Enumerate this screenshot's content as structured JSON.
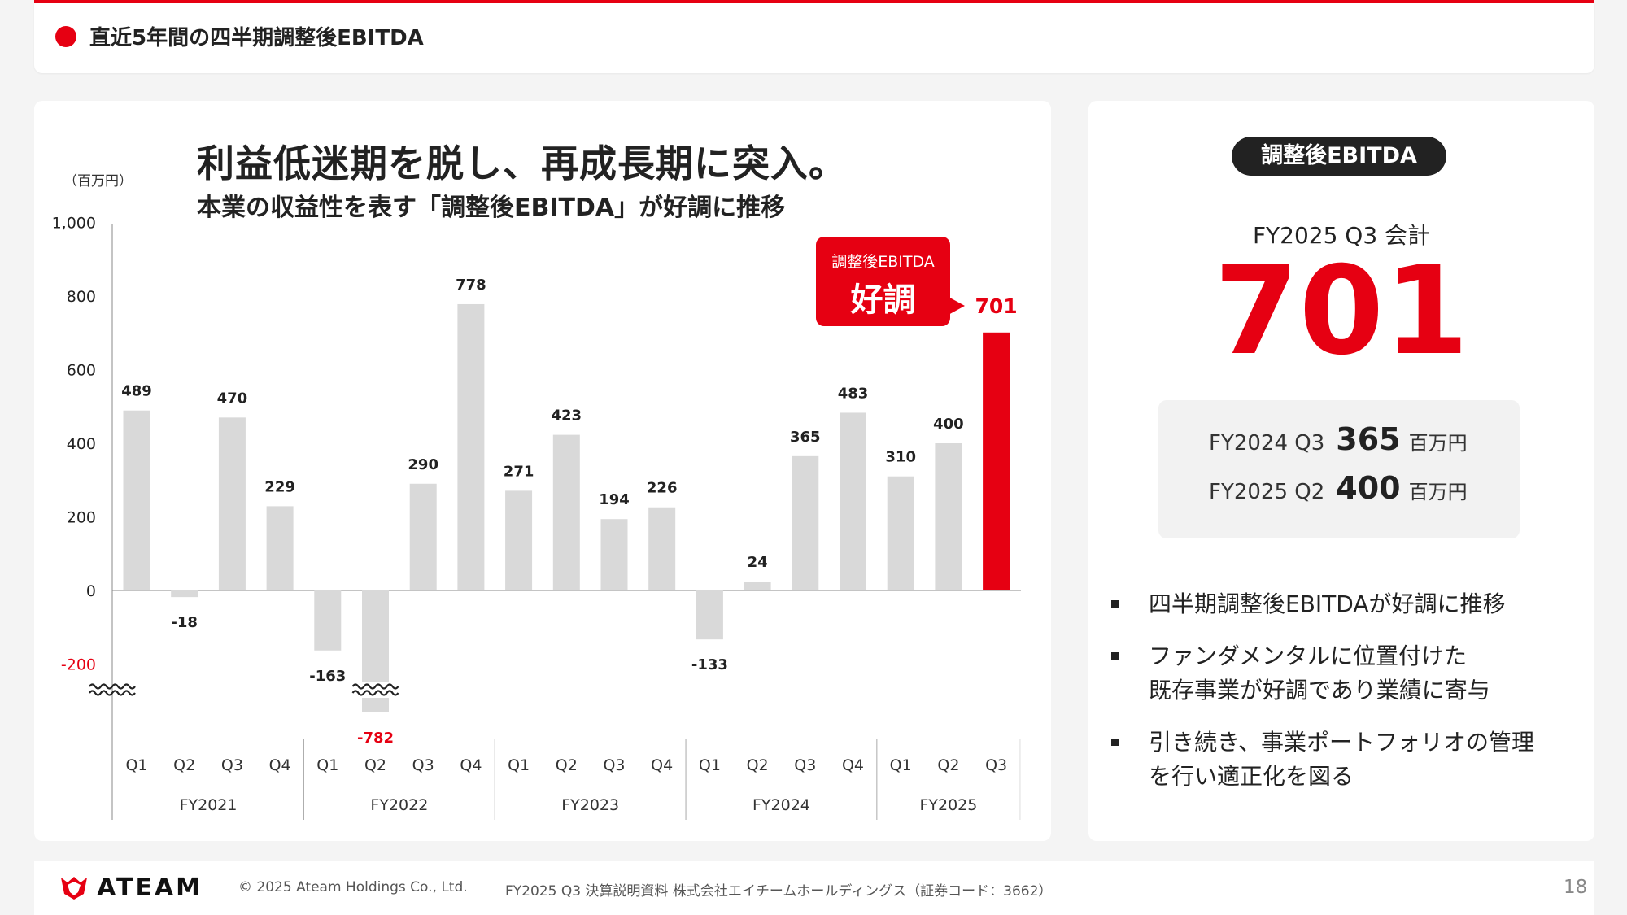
{
  "header": {
    "title": "直近5年間の四半期調整後EBITDA"
  },
  "chart_headline": "利益低迷期を脱し、再成長期に突入。",
  "chart_subhead": "本業の収益性を表す「調整後EBITDA」が好調に推移",
  "callout": {
    "label": "調整後EBITDA",
    "main": "好調"
  },
  "colors": {
    "accent": "#e60012",
    "bar": "#d9d9d9",
    "dark": "#222222"
  },
  "chart_data": {
    "type": "bar",
    "unit_label": "（百万円）",
    "ylim": [
      -200,
      1000
    ],
    "yticks": [
      1000,
      800,
      600,
      400,
      200,
      0,
      -200
    ],
    "ytick_labels": [
      "1,000",
      "800",
      "600",
      "400",
      "200",
      "0",
      "-200"
    ],
    "axis_break": true,
    "categories": [
      "Q1",
      "Q2",
      "Q3",
      "Q4",
      "Q1",
      "Q2",
      "Q3",
      "Q4",
      "Q1",
      "Q2",
      "Q3",
      "Q4",
      "Q1",
      "Q2",
      "Q3",
      "Q4",
      "Q1",
      "Q2",
      "Q3"
    ],
    "groups": [
      {
        "label": "FY2021",
        "count": 4
      },
      {
        "label": "FY2022",
        "count": 4
      },
      {
        "label": "FY2023",
        "count": 4
      },
      {
        "label": "FY2024",
        "count": 4
      },
      {
        "label": "FY2025",
        "count": 3
      }
    ],
    "values": [
      489,
      -18,
      470,
      229,
      -163,
      -782,
      290,
      778,
      271,
      423,
      194,
      226,
      -133,
      24,
      365,
      483,
      310,
      400,
      701
    ],
    "data_labels": [
      "489",
      "-18",
      "470",
      "229",
      "-163",
      "-782",
      "290",
      "778",
      "271",
      "423",
      "194",
      "226",
      "-133",
      "24",
      "365",
      "483",
      "310",
      "400",
      "701"
    ],
    "highlight_index": 18,
    "truncated_index": 5,
    "grid": false
  },
  "side": {
    "pill": "調整後EBITDA",
    "period": "FY2025 Q3 会計",
    "value": "701",
    "compare": [
      {
        "label": "FY2024 Q3",
        "value": "365",
        "unit": "百万円"
      },
      {
        "label": "FY2025 Q2",
        "value": "400",
        "unit": "百万円"
      }
    ],
    "bullets": [
      "四半期調整後EBITDAが好調に推移",
      "ファンダメンタルに位置付けた\n既存事業が好調であり業績に寄与",
      "引き続き、事業ポートフォリオの管理\nを行い適正化を図る"
    ]
  },
  "footer": {
    "logo_text": "ATEAM",
    "copyright": "© 2025 Ateam Holdings Co., Ltd.",
    "document": "FY2025 Q3 決算説明資料 株式会社エイチームホールディングス（証券コード：3662）",
    "page": "18"
  }
}
